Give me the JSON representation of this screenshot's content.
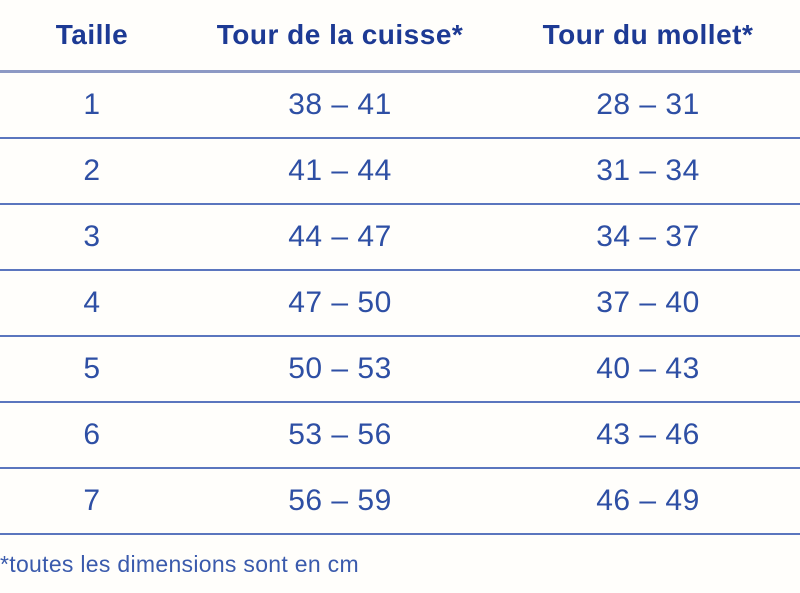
{
  "table": {
    "headers": [
      "Taille",
      "Tour de la cuisse*",
      "Tour du mollet*"
    ],
    "rows": [
      [
        "1",
        "38 – 41",
        "28 – 31"
      ],
      [
        "2",
        "41 – 44",
        "31 – 34"
      ],
      [
        "3",
        "44 – 47",
        "34 – 37"
      ],
      [
        "4",
        "47 – 50",
        "37 – 40"
      ],
      [
        "5",
        "50 – 53",
        "40 – 43"
      ],
      [
        "6",
        "53 – 56",
        "43 – 46"
      ],
      [
        "7",
        "56 – 59",
        "46 – 49"
      ]
    ],
    "footnote": "*toutes les dimensions sont en cm"
  },
  "chart_data": {
    "type": "table",
    "title": "",
    "columns": [
      "Taille",
      "Tour de la cuisse*",
      "Tour du mollet*"
    ],
    "rows": [
      {
        "taille": 1,
        "tour_de_la_cuisse_cm": [
          38,
          41
        ],
        "tour_du_mollet_cm": [
          28,
          31
        ]
      },
      {
        "taille": 2,
        "tour_de_la_cuisse_cm": [
          41,
          44
        ],
        "tour_du_mollet_cm": [
          31,
          34
        ]
      },
      {
        "taille": 3,
        "tour_de_la_cuisse_cm": [
          44,
          47
        ],
        "tour_du_mollet_cm": [
          34,
          37
        ]
      },
      {
        "taille": 4,
        "tour_de_la_cuisse_cm": [
          47,
          50
        ],
        "tour_du_mollet_cm": [
          37,
          40
        ]
      },
      {
        "taille": 5,
        "tour_de_la_cuisse_cm": [
          50,
          53
        ],
        "tour_du_mollet_cm": [
          40,
          43
        ]
      },
      {
        "taille": 6,
        "tour_de_la_cuisse_cm": [
          53,
          56
        ],
        "tour_du_mollet_cm": [
          43,
          46
        ]
      },
      {
        "taille": 7,
        "tour_de_la_cuisse_cm": [
          56,
          59
        ],
        "tour_du_mollet_cm": [
          46,
          49
        ]
      }
    ],
    "unit": "cm",
    "footnote": "*toutes les dimensions sont en cm"
  },
  "colors": {
    "header_text": "#1d3a94",
    "cell_text": "#2e4fa4",
    "footnote_text": "#3a5aac",
    "header_divider": "#8d99c4",
    "row_divider": "#5b76be",
    "background": "#fffefb"
  }
}
